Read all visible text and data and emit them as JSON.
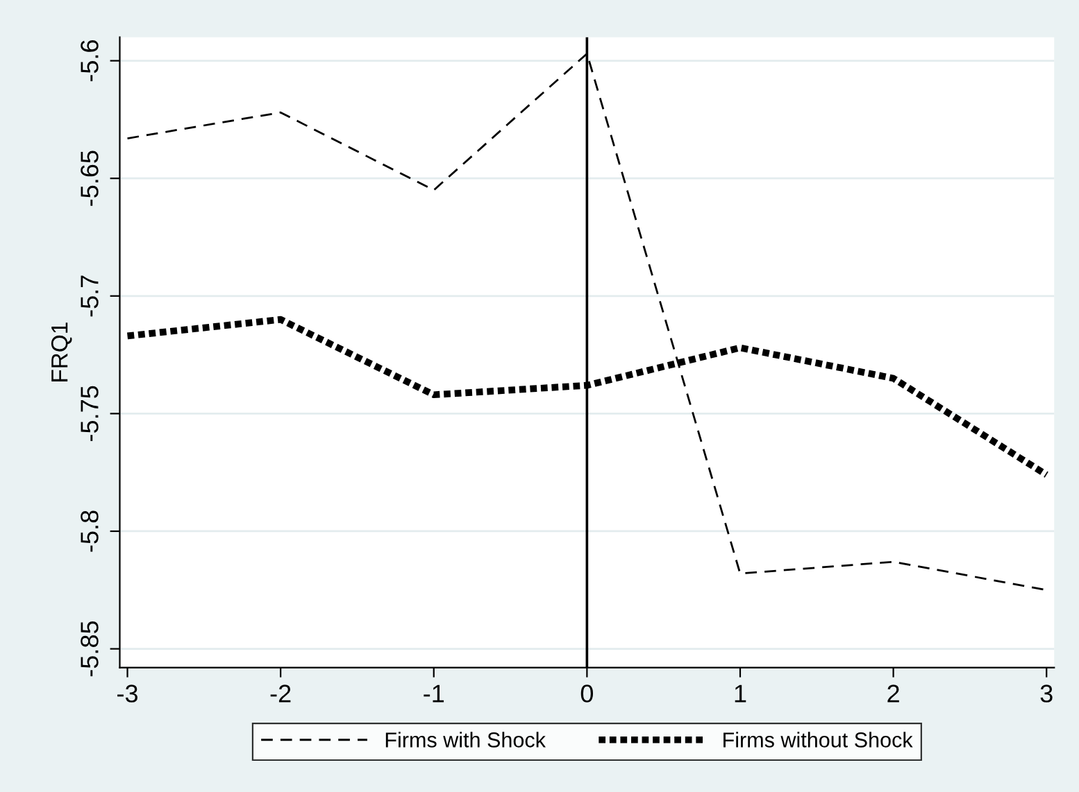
{
  "chart_data": {
    "type": "line",
    "ylabel": "FRQ1",
    "x": [
      -3,
      -2,
      -1,
      0,
      1,
      2,
      3
    ],
    "series": [
      {
        "name": "Firms with Shock",
        "color": "#000000",
        "line_style": "dashed",
        "values": [
          -5.633,
          -5.622,
          -5.655,
          -5.597,
          -5.818,
          -5.813,
          -5.825
        ]
      },
      {
        "name": "Firms without Shock",
        "color": "#000000",
        "line_style": "dotted",
        "values": [
          -5.717,
          -5.71,
          -5.742,
          -5.738,
          -5.722,
          -5.735,
          -5.776
        ]
      }
    ],
    "xlim": [
      -3.05,
      3.05
    ],
    "xticks": [
      -3,
      -2,
      -1,
      0,
      1,
      2,
      3
    ],
    "ylim": [
      -5.858,
      -5.59
    ],
    "yticks": [
      -5.85,
      -5.8,
      -5.75,
      -5.7,
      -5.65,
      -5.6
    ],
    "ref_lines": [
      {
        "axis": "x",
        "value": 0,
        "color": "#000000",
        "line_style": "solid"
      }
    ],
    "grid": "y",
    "legend": "bottom"
  }
}
